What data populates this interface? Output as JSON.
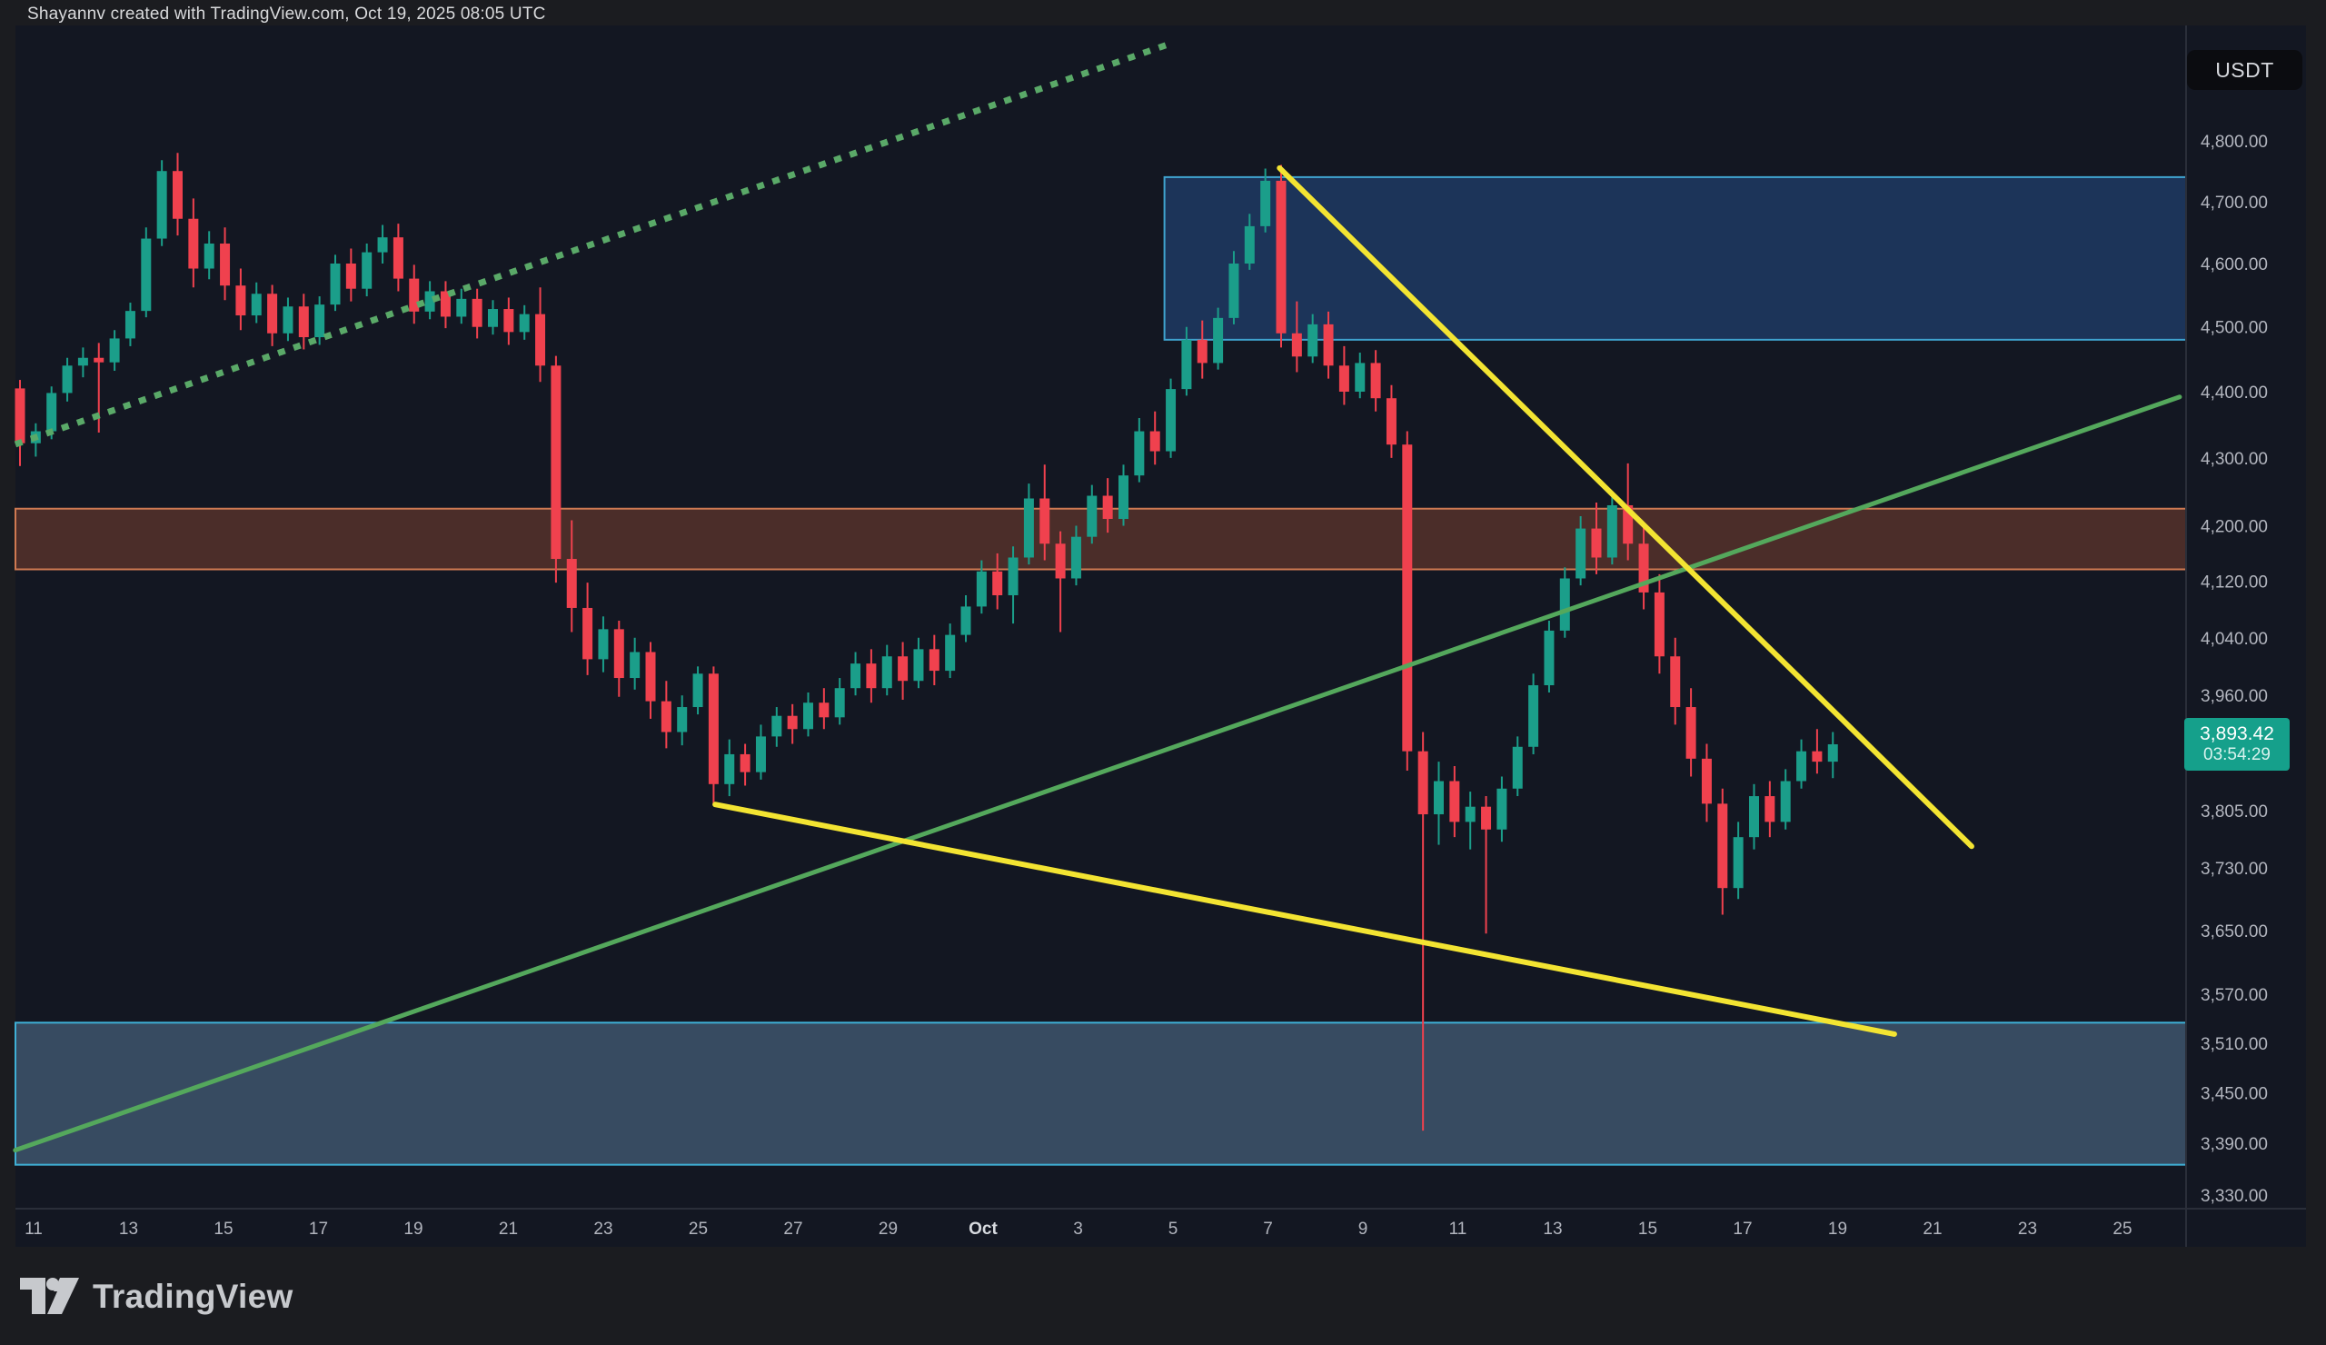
{
  "header": {
    "attribution": "Shayannv created with TradingView.com, Oct 19, 2025 08:05 UTC"
  },
  "symbol_badge": {
    "label": "USDT"
  },
  "price_tag": {
    "price": "3,893.42",
    "countdown": "03:54:29"
  },
  "logo": {
    "text": "TradingView"
  },
  "colors": {
    "outer_bg": "#1b1c20",
    "panel_bg": "#131722",
    "axis_text": "#b2b5be",
    "axis_text_bold": "#d7dadf",
    "divider": "#2a2e39",
    "candle_up": "#1b9e8a",
    "candle_down": "#f0414e",
    "trendline_yellow": "#f3e432",
    "trendline_green": "#54a85c",
    "trendline_dotted_green": "#5aa968",
    "supply_zone_fill": "rgba(50,120,220,0.30)",
    "supply_zone_border": "#3fa3cf",
    "resistance_band_fill": "rgba(204,95,60,0.30)",
    "resistance_band_border": "#cf7a52",
    "support_band_fill": "rgba(100,140,175,0.45)",
    "support_band_border": "#3fb0d6",
    "tag_bg": "#15a08b"
  },
  "chart_data": {
    "type": "candlestick",
    "symbol": "USDT",
    "interval_hint": "8h candles, Sep 11 - Oct 19",
    "scale": "log",
    "last_price": 3893.42,
    "countdown": "03:54:29",
    "y_axis": {
      "side": "right",
      "ticks": [
        {
          "label": "4,800.00",
          "value": 4800
        },
        {
          "label": "4,700.00",
          "value": 4700
        },
        {
          "label": "4,600.00",
          "value": 4600
        },
        {
          "label": "4,500.00",
          "value": 4500
        },
        {
          "label": "4,400.00",
          "value": 4400
        },
        {
          "label": "4,300.00",
          "value": 4300
        },
        {
          "label": "4,200.00",
          "value": 4200
        },
        {
          "label": "4,120.00",
          "value": 4120
        },
        {
          "label": "4,040.00",
          "value": 4040
        },
        {
          "label": "3,960.00",
          "value": 3960
        },
        {
          "label": "3,805.00",
          "value": 3805
        },
        {
          "label": "3,730.00",
          "value": 3730
        },
        {
          "label": "3,650.00",
          "value": 3650
        },
        {
          "label": "3,570.00",
          "value": 3570
        },
        {
          "label": "3,510.00",
          "value": 3510
        },
        {
          "label": "3,450.00",
          "value": 3450
        },
        {
          "label": "3,390.00",
          "value": 3390
        },
        {
          "label": "3,330.00",
          "value": 3330
        }
      ]
    },
    "x_axis": {
      "labels": [
        "11",
        "13",
        "15",
        "17",
        "19",
        "21",
        "23",
        "25",
        "27",
        "29",
        "Oct",
        "3",
        "5",
        "7",
        "9",
        "11",
        "13",
        "15",
        "17",
        "19",
        "21",
        "23",
        "25"
      ],
      "bold_label": "Oct"
    },
    "candles": [
      [
        4405,
        4418,
        4288,
        4322
      ],
      [
        4322,
        4352,
        4302,
        4340
      ],
      [
        4340,
        4408,
        4328,
        4398
      ],
      [
        4398,
        4452,
        4385,
        4440
      ],
      [
        4440,
        4468,
        4422,
        4452
      ],
      [
        4452,
        4475,
        4338,
        4445
      ],
      [
        4445,
        4495,
        4432,
        4482
      ],
      [
        4482,
        4538,
        4470,
        4525
      ],
      [
        4525,
        4658,
        4515,
        4640
      ],
      [
        4640,
        4768,
        4628,
        4750
      ],
      [
        4750,
        4780,
        4645,
        4672
      ],
      [
        4672,
        4705,
        4562,
        4592
      ],
      [
        4592,
        4652,
        4575,
        4632
      ],
      [
        4632,
        4658,
        4542,
        4565
      ],
      [
        4565,
        4592,
        4495,
        4518
      ],
      [
        4518,
        4570,
        4506,
        4552
      ],
      [
        4552,
        4566,
        4470,
        4490
      ],
      [
        4490,
        4546,
        4478,
        4532
      ],
      [
        4532,
        4552,
        4465,
        4484
      ],
      [
        4484,
        4548,
        4472,
        4535
      ],
      [
        4535,
        4614,
        4525,
        4600
      ],
      [
        4600,
        4624,
        4540,
        4560
      ],
      [
        4560,
        4632,
        4548,
        4618
      ],
      [
        4618,
        4662,
        4600,
        4642
      ],
      [
        4642,
        4664,
        4556,
        4576
      ],
      [
        4576,
        4598,
        4505,
        4524
      ],
      [
        4524,
        4572,
        4512,
        4556
      ],
      [
        4556,
        4572,
        4498,
        4516
      ],
      [
        4516,
        4560,
        4505,
        4544
      ],
      [
        4544,
        4560,
        4482,
        4500
      ],
      [
        4500,
        4542,
        4488,
        4528
      ],
      [
        4528,
        4546,
        4472,
        4492
      ],
      [
        4492,
        4534,
        4480,
        4520
      ],
      [
        4520,
        4562,
        4415,
        4440
      ],
      [
        4440,
        4455,
        4118,
        4152
      ],
      [
        4152,
        4208,
        4048,
        4082
      ],
      [
        4082,
        4118,
        3988,
        4010
      ],
      [
        4010,
        4070,
        3992,
        4052
      ],
      [
        4052,
        4064,
        3958,
        3984
      ],
      [
        3984,
        4040,
        3968,
        4020
      ],
      [
        4020,
        4034,
        3928,
        3952
      ],
      [
        3952,
        3980,
        3888,
        3910
      ],
      [
        3910,
        3960,
        3892,
        3944
      ],
      [
        3944,
        4000,
        3934,
        3990
      ],
      [
        3990,
        4000,
        3812,
        3840
      ],
      [
        3840,
        3900,
        3824,
        3880
      ],
      [
        3880,
        3894,
        3838,
        3856
      ],
      [
        3856,
        3920,
        3846,
        3904
      ],
      [
        3904,
        3944,
        3890,
        3932
      ],
      [
        3932,
        3948,
        3894,
        3914
      ],
      [
        3914,
        3964,
        3904,
        3950
      ],
      [
        3950,
        3970,
        3914,
        3930
      ],
      [
        3930,
        3984,
        3920,
        3970
      ],
      [
        3970,
        4020,
        3960,
        4004
      ],
      [
        4004,
        4024,
        3950,
        3970
      ],
      [
        3970,
        4030,
        3960,
        4014
      ],
      [
        4014,
        4034,
        3954,
        3980
      ],
      [
        3980,
        4040,
        3970,
        4024
      ],
      [
        4024,
        4044,
        3974,
        3994
      ],
      [
        3994,
        4060,
        3984,
        4044
      ],
      [
        4044,
        4100,
        4034,
        4084
      ],
      [
        4084,
        4150,
        4074,
        4134
      ],
      [
        4134,
        4160,
        4080,
        4100
      ],
      [
        4100,
        4170,
        4060,
        4154
      ],
      [
        4154,
        4262,
        4144,
        4240
      ],
      [
        4240,
        4290,
        4150,
        4174
      ],
      [
        4174,
        4192,
        4048,
        4124
      ],
      [
        4124,
        4200,
        4114,
        4184
      ],
      [
        4184,
        4260,
        4174,
        4244
      ],
      [
        4244,
        4270,
        4190,
        4210
      ],
      [
        4210,
        4290,
        4200,
        4274
      ],
      [
        4274,
        4360,
        4264,
        4340
      ],
      [
        4340,
        4370,
        4290,
        4310
      ],
      [
        4310,
        4420,
        4300,
        4404
      ],
      [
        4404,
        4500,
        4394,
        4480
      ],
      [
        4480,
        4510,
        4420,
        4444
      ],
      [
        4444,
        4530,
        4434,
        4514
      ],
      [
        4514,
        4620,
        4504,
        4600
      ],
      [
        4600,
        4680,
        4590,
        4660
      ],
      [
        4660,
        4754,
        4650,
        4734
      ],
      [
        4734,
        4760,
        4468,
        4490
      ],
      [
        4490,
        4540,
        4430,
        4454
      ],
      [
        4454,
        4520,
        4444,
        4504
      ],
      [
        4504,
        4524,
        4420,
        4440
      ],
      [
        4440,
        4470,
        4380,
        4400
      ],
      [
        4400,
        4460,
        4390,
        4444
      ],
      [
        4444,
        4464,
        4370,
        4390
      ],
      [
        4390,
        4410,
        4300,
        4320
      ],
      [
        4320,
        4340,
        3858,
        3884
      ],
      [
        3884,
        3910,
        3405,
        3800
      ],
      [
        3800,
        3870,
        3760,
        3844
      ],
      [
        3844,
        3864,
        3770,
        3790
      ],
      [
        3790,
        3830,
        3754,
        3810
      ],
      [
        3810,
        3824,
        3646,
        3780
      ],
      [
        3780,
        3850,
        3764,
        3834
      ],
      [
        3834,
        3904,
        3824,
        3890
      ],
      [
        3890,
        3990,
        3880,
        3974
      ],
      [
        3974,
        4064,
        3964,
        4050
      ],
      [
        4050,
        4140,
        4040,
        4124
      ],
      [
        4124,
        4214,
        4114,
        4196
      ],
      [
        4196,
        4234,
        4130,
        4154
      ],
      [
        4154,
        4250,
        4144,
        4230
      ],
      [
        4230,
        4292,
        4150,
        4174
      ],
      [
        4174,
        4200,
        4080,
        4104
      ],
      [
        4104,
        4130,
        3990,
        4014
      ],
      [
        4014,
        4040,
        3920,
        3944
      ],
      [
        3944,
        3970,
        3850,
        3874
      ],
      [
        3874,
        3894,
        3790,
        3814
      ],
      [
        3814,
        3834,
        3670,
        3704
      ],
      [
        3704,
        3790,
        3690,
        3770
      ],
      [
        3770,
        3840,
        3754,
        3824
      ],
      [
        3824,
        3844,
        3770,
        3790
      ],
      [
        3790,
        3860,
        3780,
        3844
      ],
      [
        3844,
        3900,
        3834,
        3884
      ],
      [
        3884,
        3914,
        3854,
        3870
      ],
      [
        3870,
        3910,
        3848,
        3893.42
      ]
    ],
    "zones": [
      {
        "name": "supply-zone",
        "i1": 72.6,
        "i2": null,
        "p1": 4740,
        "p2": 4480,
        "fill_key": "supply_zone_fill",
        "border_key": "supply_zone_border"
      },
      {
        "name": "resistance-band",
        "i1": null,
        "i2": null,
        "p1": 4225,
        "p2": 4137,
        "fill_key": "resistance_band_fill",
        "border_key": "resistance_band_border"
      },
      {
        "name": "support-band",
        "i1": null,
        "i2": null,
        "p1": 3535,
        "p2": 3365,
        "fill_key": "support_band_fill",
        "border_key": "support_band_border"
      }
    ],
    "trendlines": [
      {
        "name": "ascending-dotted-trendline",
        "i1": -0.1,
        "p1": 4322,
        "i2": 72.7,
        "p2": 4962,
        "color_key": "trendline_dotted_green",
        "width": 7,
        "dotted": true
      },
      {
        "name": "ascending-support-trendline",
        "i1": -0.3,
        "p1": 3382,
        "i2": 137,
        "p2": 4392,
        "color_key": "trendline_green",
        "width": 5,
        "dotted": false
      },
      {
        "name": "descending-steep-trendline",
        "i1": 79.9,
        "p1": 4755,
        "i2": 123.8,
        "p2": 3758,
        "color_key": "trendline_yellow",
        "width": 6,
        "dotted": false
      },
      {
        "name": "descending-shallow-trendline",
        "i1": 44.1,
        "p1": 3813,
        "i2": 118.9,
        "p2": 3521,
        "color_key": "trendline_yellow",
        "width": 6,
        "dotted": false
      }
    ]
  }
}
